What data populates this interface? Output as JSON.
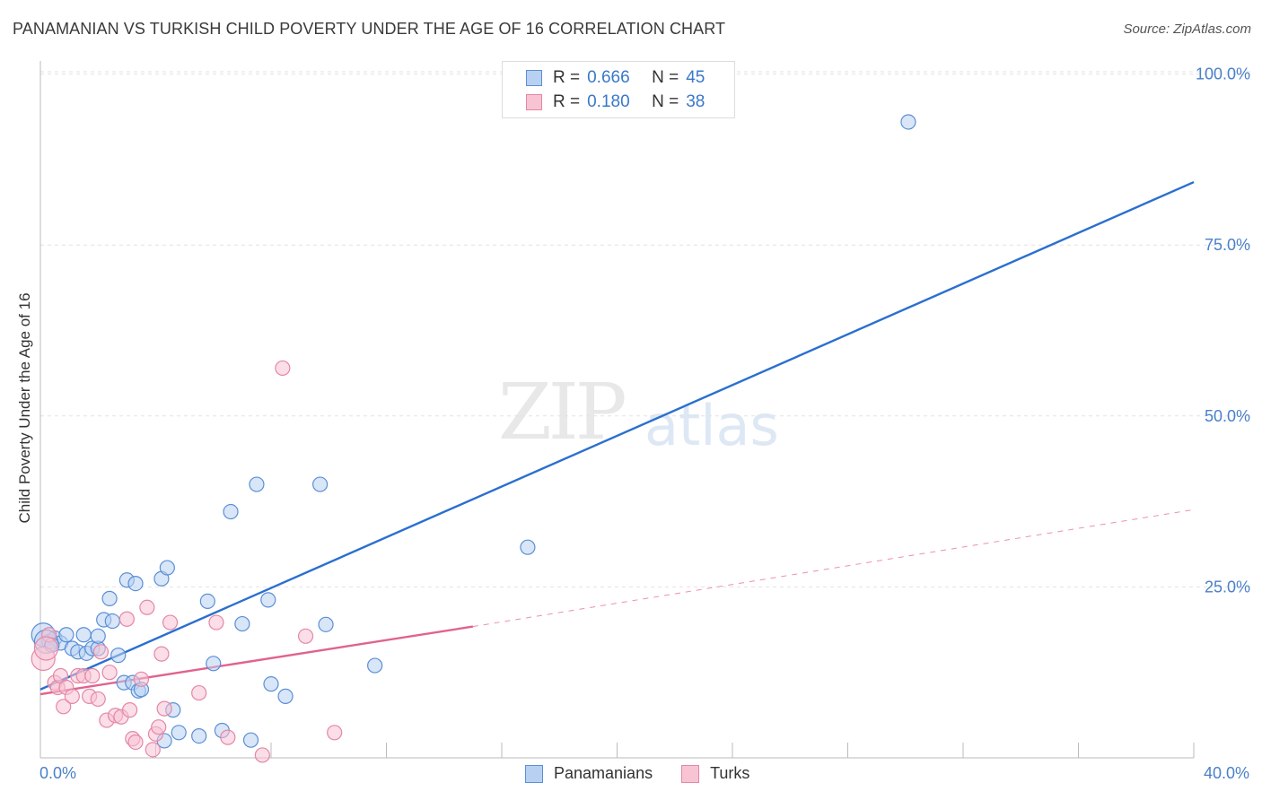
{
  "header": {
    "title": "PANAMANIAN VS TURKISH CHILD POVERTY UNDER THE AGE OF 16 CORRELATION CHART",
    "source": "Source: ZipAtlas.com"
  },
  "watermark": {
    "zip": "ZIP",
    "atlas": "atlas"
  },
  "legend": {
    "r_label": "R =",
    "n_label": "N =",
    "rows": [
      {
        "r": "0.666",
        "n": "45"
      },
      {
        "r": "0.180",
        "n": "38"
      }
    ]
  },
  "colors": {
    "blue_fill": "#b8d1f2",
    "blue_stroke": "#5b8fd6",
    "blue_line": "#2a6fd0",
    "pink_fill": "#f8c3d3",
    "pink_stroke": "#e487a6",
    "pink_line": "#e0628f",
    "tick_text": "#4a80c9"
  },
  "chart_data": {
    "type": "scatter",
    "title": "PANAMANIAN VS TURKISH CHILD POVERTY UNDER THE AGE OF 16 CORRELATION CHART",
    "xlabel": "",
    "ylabel": "Child Poverty Under the Age of 16",
    "xlim": [
      0,
      40
    ],
    "ylim": [
      0,
      100
    ],
    "x_tick_labels": [
      "0.0%",
      "40.0%"
    ],
    "y_ticks": [
      25,
      50,
      75,
      100
    ],
    "y_tick_labels": [
      "25.0%",
      "50.0%",
      "75.0%",
      "100.0%"
    ],
    "series": [
      {
        "name": "Panamanians",
        "color": "#5b8fd6",
        "points": [
          [
            0.1,
            18.0
          ],
          [
            0.3,
            17.0
          ],
          [
            0.5,
            17.5
          ],
          [
            0.7,
            16.8
          ],
          [
            0.9,
            18.0
          ],
          [
            1.1,
            16.0
          ],
          [
            1.3,
            15.5
          ],
          [
            1.5,
            18.0
          ],
          [
            1.6,
            15.3
          ],
          [
            1.8,
            16.0
          ],
          [
            2.0,
            16.0
          ],
          [
            2.0,
            17.8
          ],
          [
            2.2,
            20.2
          ],
          [
            2.4,
            23.3
          ],
          [
            2.5,
            20.0
          ],
          [
            2.7,
            15.0
          ],
          [
            2.9,
            11.0
          ],
          [
            3.0,
            26.0
          ],
          [
            3.2,
            11.0
          ],
          [
            3.3,
            25.5
          ],
          [
            3.4,
            9.8
          ],
          [
            3.5,
            10.0
          ],
          [
            4.2,
            26.2
          ],
          [
            4.3,
            2.5
          ],
          [
            4.4,
            27.8
          ],
          [
            4.6,
            7.0
          ],
          [
            4.8,
            3.7
          ],
          [
            5.5,
            3.2
          ],
          [
            5.8,
            22.9
          ],
          [
            6.0,
            13.8
          ],
          [
            6.3,
            4.0
          ],
          [
            6.6,
            36.0
          ],
          [
            7.0,
            19.6
          ],
          [
            7.3,
            2.6
          ],
          [
            7.5,
            40.0
          ],
          [
            7.9,
            23.1
          ],
          [
            8.0,
            10.8
          ],
          [
            8.5,
            9.0
          ],
          [
            9.7,
            40.0
          ],
          [
            9.9,
            19.5
          ],
          [
            11.6,
            13.5
          ],
          [
            16.9,
            30.8
          ],
          [
            30.1,
            93.0
          ],
          [
            0.2,
            17.0
          ],
          [
            0.4,
            16.5
          ]
        ]
      },
      {
        "name": "Turks",
        "color": "#e487a6",
        "points": [
          [
            0.1,
            14.5
          ],
          [
            0.3,
            18.0
          ],
          [
            0.5,
            11.0
          ],
          [
            0.6,
            10.3
          ],
          [
            0.7,
            12.0
          ],
          [
            0.8,
            7.5
          ],
          [
            0.9,
            10.3
          ],
          [
            1.1,
            9.0
          ],
          [
            1.3,
            12.0
          ],
          [
            1.5,
            12.0
          ],
          [
            1.7,
            9.0
          ],
          [
            1.8,
            12.0
          ],
          [
            2.0,
            8.6
          ],
          [
            2.1,
            15.5
          ],
          [
            2.3,
            5.5
          ],
          [
            2.4,
            12.5
          ],
          [
            2.6,
            6.2
          ],
          [
            2.8,
            6.0
          ],
          [
            3.0,
            20.3
          ],
          [
            3.1,
            7.0
          ],
          [
            3.2,
            2.8
          ],
          [
            3.3,
            2.3
          ],
          [
            3.5,
            11.5
          ],
          [
            3.7,
            22.0
          ],
          [
            3.9,
            1.2
          ],
          [
            4.0,
            3.5
          ],
          [
            4.1,
            4.5
          ],
          [
            4.2,
            15.2
          ],
          [
            4.3,
            7.2
          ],
          [
            4.5,
            19.8
          ],
          [
            5.5,
            9.5
          ],
          [
            6.1,
            19.8
          ],
          [
            6.5,
            3.0
          ],
          [
            7.7,
            0.4
          ],
          [
            8.4,
            57.0
          ],
          [
            9.2,
            17.8
          ],
          [
            10.2,
            3.7
          ],
          [
            0.2,
            16.0
          ]
        ]
      }
    ],
    "trend_lines": [
      {
        "name": "Panamanians",
        "x0": 0,
        "y0": 10.0,
        "x1": 40,
        "y1": 84.2,
        "style": "solid"
      },
      {
        "name": "Turks",
        "x0": 0,
        "y0": 9.3,
        "x1": 15,
        "y1": 19.2,
        "style": "solid"
      },
      {
        "name": "Turks",
        "x0": 15,
        "y0": 19.2,
        "x1": 40,
        "y1": 36.3,
        "style": "dashed"
      }
    ],
    "legend_entries": [
      "Panamanians",
      "Turks"
    ]
  }
}
